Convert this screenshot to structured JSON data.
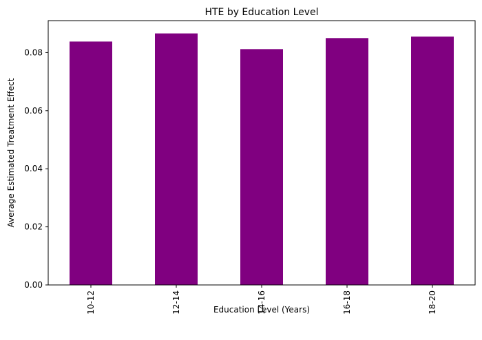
{
  "chart_data": {
    "type": "bar",
    "title": "HTE by Education Level",
    "xlabel": "Education Level (Years)",
    "ylabel": "Average Estimated Treatment Effect",
    "categories": [
      "10-12",
      "12-14",
      "14-16",
      "16-18",
      "18-20"
    ],
    "values": [
      0.0838,
      0.0866,
      0.0812,
      0.085,
      0.0855
    ],
    "ylim": [
      0,
      0.091
    ],
    "yticks": [
      0.0,
      0.02,
      0.04,
      0.06,
      0.08
    ],
    "ytick_labels": [
      "0.00",
      "0.02",
      "0.04",
      "0.06",
      "0.08"
    ],
    "bar_color": "#800080",
    "grid": false,
    "legend": "none"
  }
}
